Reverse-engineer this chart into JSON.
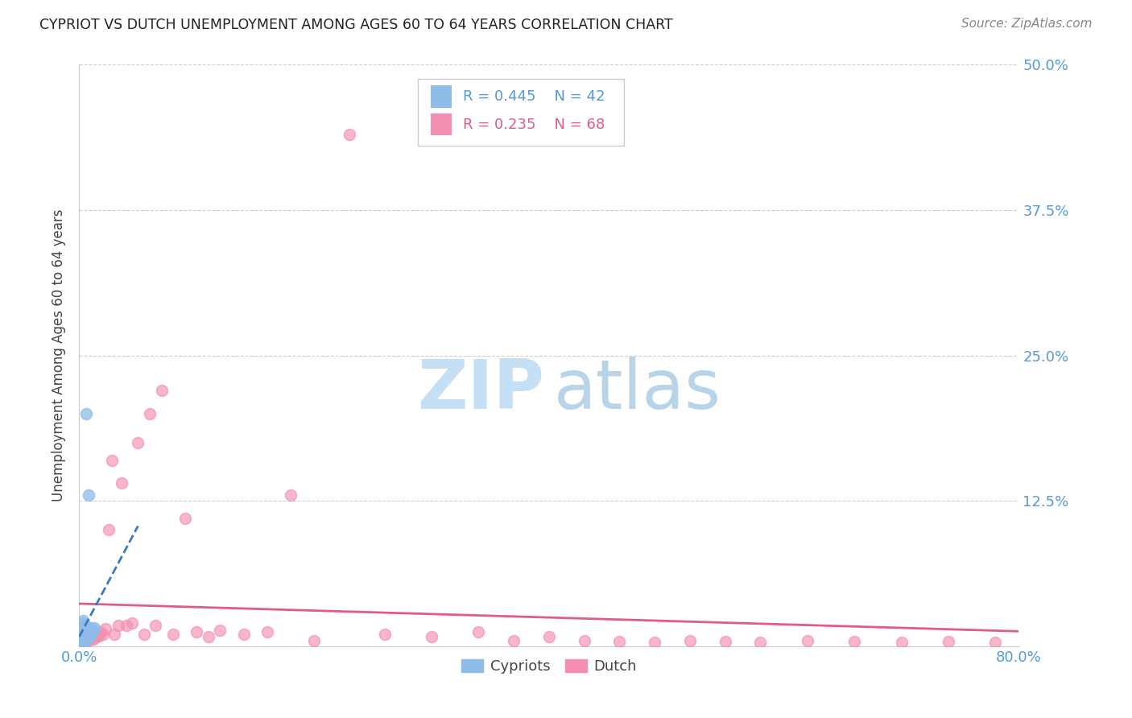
{
  "title": "CYPRIOT VS DUTCH UNEMPLOYMENT AMONG AGES 60 TO 64 YEARS CORRELATION CHART",
  "source": "Source: ZipAtlas.com",
  "ylabel": "Unemployment Among Ages 60 to 64 years",
  "xlim": [
    0.0,
    0.8
  ],
  "ylim": [
    0.0,
    0.5
  ],
  "xticks": [
    0.0,
    0.2,
    0.4,
    0.6,
    0.8
  ],
  "xticklabels": [
    "0.0%",
    "",
    "",
    "",
    "80.0%"
  ],
  "yticks": [
    0.0,
    0.125,
    0.25,
    0.375,
    0.5
  ],
  "yticklabels": [
    "",
    "12.5%",
    "25.0%",
    "37.5%",
    "50.0%"
  ],
  "cypriot_color": "#90bce8",
  "dutch_color": "#f48fb1",
  "cypriot_line_color": "#3a7abf",
  "dutch_line_color": "#e05c8a",
  "cypriot_R": 0.445,
  "cypriot_N": 42,
  "dutch_R": 0.235,
  "dutch_N": 68,
  "watermark_zip_color": "#c5dff5",
  "watermark_atlas_color": "#b8d4e8",
  "cypriot_points_x": [
    0.001,
    0.001,
    0.001,
    0.001,
    0.001,
    0.002,
    0.002,
    0.002,
    0.002,
    0.002,
    0.002,
    0.003,
    0.003,
    0.003,
    0.003,
    0.003,
    0.003,
    0.003,
    0.004,
    0.004,
    0.004,
    0.004,
    0.004,
    0.005,
    0.005,
    0.005,
    0.005,
    0.006,
    0.006,
    0.006,
    0.006,
    0.007,
    0.007,
    0.007,
    0.008,
    0.008,
    0.009,
    0.01,
    0.01,
    0.011,
    0.012,
    0.013
  ],
  "cypriot_points_y": [
    0.002,
    0.004,
    0.006,
    0.008,
    0.01,
    0.003,
    0.005,
    0.007,
    0.009,
    0.012,
    0.015,
    0.003,
    0.006,
    0.008,
    0.01,
    0.012,
    0.018,
    0.022,
    0.004,
    0.007,
    0.01,
    0.013,
    0.02,
    0.005,
    0.008,
    0.012,
    0.018,
    0.006,
    0.009,
    0.013,
    0.2,
    0.007,
    0.01,
    0.015,
    0.008,
    0.13,
    0.009,
    0.01,
    0.016,
    0.012,
    0.014,
    0.016
  ],
  "dutch_points_x": [
    0.001,
    0.002,
    0.002,
    0.003,
    0.003,
    0.004,
    0.004,
    0.005,
    0.005,
    0.006,
    0.006,
    0.007,
    0.007,
    0.008,
    0.008,
    0.009,
    0.009,
    0.01,
    0.01,
    0.011,
    0.012,
    0.012,
    0.013,
    0.014,
    0.015,
    0.016,
    0.017,
    0.018,
    0.02,
    0.022,
    0.025,
    0.028,
    0.03,
    0.033,
    0.036,
    0.04,
    0.045,
    0.05,
    0.055,
    0.06,
    0.065,
    0.07,
    0.08,
    0.09,
    0.1,
    0.11,
    0.12,
    0.14,
    0.16,
    0.18,
    0.2,
    0.23,
    0.26,
    0.3,
    0.34,
    0.37,
    0.4,
    0.43,
    0.46,
    0.49,
    0.52,
    0.55,
    0.58,
    0.62,
    0.66,
    0.7,
    0.74,
    0.78
  ],
  "dutch_points_y": [
    0.005,
    0.003,
    0.008,
    0.004,
    0.01,
    0.005,
    0.012,
    0.004,
    0.008,
    0.005,
    0.01,
    0.005,
    0.012,
    0.006,
    0.01,
    0.006,
    0.011,
    0.007,
    0.012,
    0.008,
    0.006,
    0.012,
    0.008,
    0.01,
    0.008,
    0.01,
    0.009,
    0.012,
    0.01,
    0.015,
    0.1,
    0.16,
    0.01,
    0.018,
    0.14,
    0.018,
    0.02,
    0.175,
    0.01,
    0.2,
    0.018,
    0.22,
    0.01,
    0.11,
    0.012,
    0.008,
    0.014,
    0.01,
    0.012,
    0.13,
    0.005,
    0.44,
    0.01,
    0.008,
    0.012,
    0.005,
    0.008,
    0.005,
    0.004,
    0.003,
    0.005,
    0.004,
    0.003,
    0.005,
    0.004,
    0.003,
    0.004,
    0.003
  ]
}
